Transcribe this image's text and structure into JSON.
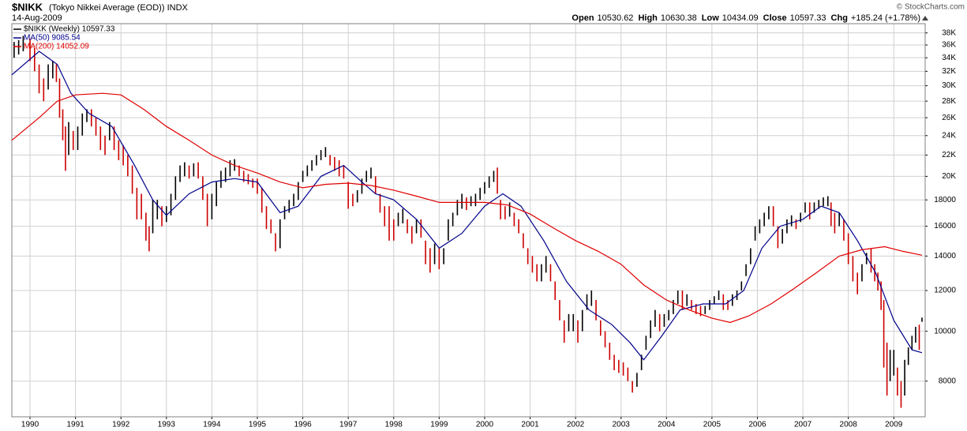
{
  "chart_data": {
    "type": "stock",
    "title": "$NIKK",
    "subtitle": "(Tokyo Nikkei Average (EOD)) INDX",
    "date": "14-Aug-2009",
    "source": "© StockCharts.com",
    "quote": [
      {
        "label": "Open",
        "value": 10530.62
      },
      {
        "label": "High",
        "value": 10630.38
      },
      {
        "label": "Low",
        "value": 10434.09
      },
      {
        "label": "Close",
        "value": 10597.33
      },
      {
        "label": "Chg",
        "value": "+185.24 (+1.78%)"
      }
    ],
    "log_scale": true,
    "grid": true,
    "legend": "top-left",
    "xlim": [
      1989.6,
      2009.69
    ],
    "xticks": [
      {
        "value": 1990,
        "label": "1990"
      },
      {
        "value": 1991,
        "label": "1991"
      },
      {
        "value": 1992,
        "label": "1992"
      },
      {
        "value": 1993,
        "label": "1993"
      },
      {
        "value": 1994,
        "label": "1994"
      },
      {
        "value": 1995,
        "label": "1995"
      },
      {
        "value": 1996,
        "label": "1996"
      },
      {
        "value": 1997,
        "label": "1997"
      },
      {
        "value": 1998,
        "label": "1998"
      },
      {
        "value": 1999,
        "label": "1999"
      },
      {
        "value": 2000,
        "label": "2000"
      },
      {
        "value": 2001,
        "label": "2001"
      },
      {
        "value": 2002,
        "label": "2002"
      },
      {
        "value": 2003,
        "label": "2003"
      },
      {
        "value": 2004,
        "label": "2004"
      },
      {
        "value": 2005,
        "label": "2005"
      },
      {
        "value": 2006,
        "label": "2006"
      },
      {
        "value": 2007,
        "label": "2007"
      },
      {
        "value": 2008,
        "label": "2008"
      },
      {
        "value": 2009,
        "label": "2009"
      }
    ],
    "ylim": [
      6820,
      39600
    ],
    "yticks": [
      8000,
      10000,
      12000,
      14000,
      16000,
      18000,
      {
        "value": 20000,
        "label": "20K"
      },
      {
        "value": 22000,
        "label": "22K"
      },
      {
        "value": 24000,
        "label": "24K"
      },
      {
        "value": 26000,
        "label": "26K"
      },
      {
        "value": 28000,
        "label": "28K"
      },
      {
        "value": 30000,
        "label": "30K"
      },
      {
        "value": 32000,
        "label": "32K"
      },
      {
        "value": 34000,
        "label": "34K"
      },
      {
        "value": 36000,
        "label": "36K"
      },
      {
        "value": 38000,
        "label": "38K"
      }
    ],
    "series": [
      {
        "name": "$NIKK (Weekly) 10597.33",
        "type": "bar",
        "color": "#000000",
        "down_color": "#cc0000",
        "x": [
          1989.65,
          1989.75,
          1989.85,
          1990.0,
          1990.1,
          1990.2,
          1990.3,
          1990.4,
          1990.5,
          1990.58,
          1990.65,
          1990.72,
          1990.78,
          1990.85,
          1990.95,
          1991.05,
          1991.15,
          1991.25,
          1991.35,
          1991.45,
          1991.55,
          1991.65,
          1991.75,
          1991.85,
          1991.95,
          1992.05,
          1992.15,
          1992.25,
          1992.35,
          1992.45,
          1992.55,
          1992.62,
          1992.7,
          1992.8,
          1992.9,
          1993.0,
          1993.1,
          1993.2,
          1993.3,
          1993.4,
          1993.5,
          1993.6,
          1993.7,
          1993.8,
          1993.9,
          1994.0,
          1994.1,
          1994.2,
          1994.3,
          1994.4,
          1994.5,
          1994.6,
          1994.7,
          1994.8,
          1994.9,
          1995.0,
          1995.1,
          1995.2,
          1995.3,
          1995.4,
          1995.5,
          1995.6,
          1995.7,
          1995.8,
          1995.9,
          1996.0,
          1996.1,
          1996.2,
          1996.3,
          1996.4,
          1996.5,
          1996.6,
          1996.7,
          1996.8,
          1996.9,
          1997.0,
          1997.1,
          1997.2,
          1997.3,
          1997.4,
          1997.5,
          1997.6,
          1997.7,
          1997.8,
          1997.9,
          1998.0,
          1998.1,
          1998.2,
          1998.3,
          1998.4,
          1998.5,
          1998.6,
          1998.7,
          1998.8,
          1998.9,
          1999.0,
          1999.1,
          1999.2,
          1999.3,
          1999.4,
          1999.5,
          1999.6,
          1999.7,
          1999.8,
          1999.9,
          2000.0,
          2000.1,
          2000.2,
          2000.28,
          2000.35,
          2000.45,
          2000.55,
          2000.65,
          2000.75,
          2000.85,
          2000.95,
          2001.05,
          2001.15,
          2001.25,
          2001.35,
          2001.45,
          2001.55,
          2001.65,
          2001.75,
          2001.85,
          2001.95,
          2002.05,
          2002.15,
          2002.25,
          2002.35,
          2002.45,
          2002.55,
          2002.65,
          2002.75,
          2002.85,
          2002.95,
          2003.05,
          2003.15,
          2003.25,
          2003.35,
          2003.45,
          2003.55,
          2003.65,
          2003.75,
          2003.85,
          2003.95,
          2004.05,
          2004.15,
          2004.25,
          2004.35,
          2004.45,
          2004.55,
          2004.65,
          2004.75,
          2004.85,
          2004.95,
          2005.05,
          2005.15,
          2005.25,
          2005.35,
          2005.45,
          2005.55,
          2005.65,
          2005.75,
          2005.85,
          2005.95,
          2006.05,
          2006.15,
          2006.25,
          2006.35,
          2006.45,
          2006.55,
          2006.65,
          2006.75,
          2006.85,
          2006.95,
          2007.05,
          2007.15,
          2007.25,
          2007.35,
          2007.45,
          2007.55,
          2007.62,
          2007.7,
          2007.8,
          2007.9,
          2008.0,
          2008.1,
          2008.2,
          2008.3,
          2008.4,
          2008.5,
          2008.58,
          2008.65,
          2008.72,
          2008.78,
          2008.85,
          2008.92,
          2009.0,
          2009.08,
          2009.16,
          2009.24,
          2009.32,
          2009.4,
          2009.48,
          2009.56,
          2009.62
        ],
        "high": [
          36500,
          36800,
          37500,
          37000,
          35500,
          33000,
          31000,
          33000,
          33500,
          33000,
          31000,
          27000,
          25000,
          25500,
          24500,
          25000,
          26500,
          27000,
          27000,
          26000,
          25000,
          24000,
          25500,
          25000,
          23500,
          23000,
          22000,
          21000,
          19000,
          18500,
          17000,
          16000,
          18000,
          18000,
          17500,
          17500,
          18500,
          20000,
          21000,
          21300,
          21000,
          21200,
          21300,
          20000,
          18500,
          18500,
          19500,
          20500,
          20800,
          21500,
          21600,
          21000,
          20500,
          20200,
          19800,
          19800,
          19000,
          17500,
          16500,
          15500,
          16500,
          17500,
          18000,
          18500,
          19500,
          20500,
          21000,
          21500,
          22000,
          22500,
          22800,
          22000,
          21800,
          21500,
          21000,
          19500,
          18500,
          18800,
          19800,
          20500,
          20800,
          20000,
          18500,
          17500,
          17500,
          16500,
          17000,
          17300,
          16500,
          16000,
          16500,
          16500,
          15000,
          14500,
          14800,
          14500,
          14500,
          16500,
          17000,
          18000,
          18500,
          18200,
          18300,
          18500,
          19000,
          19500,
          20000,
          20500,
          20800,
          18000,
          17500,
          17800,
          17000,
          16500,
          15500,
          14500,
          14000,
          13500,
          13500,
          14000,
          13500,
          12500,
          11500,
          10500,
          10800,
          10800,
          10500,
          11000,
          11800,
          12000,
          11500,
          10500,
          10000,
          9500,
          9000,
          8800,
          8700,
          8500,
          8000,
          8300,
          9000,
          9800,
          10500,
          11000,
          10800,
          10800,
          11000,
          11500,
          12000,
          12000,
          11800,
          11500,
          11300,
          11200,
          11200,
          11500,
          11700,
          12000,
          11800,
          11500,
          11800,
          12000,
          12500,
          13500,
          14500,
          16000,
          16500,
          17000,
          17500,
          17500,
          16000,
          15800,
          16500,
          16800,
          16500,
          17000,
          17800,
          17800,
          17800,
          18000,
          18200,
          18300,
          17800,
          17000,
          17000,
          16500,
          15500,
          14000,
          13000,
          13500,
          14200,
          14500,
          13500,
          13000,
          12500,
          11500,
          9500,
          9200,
          9200,
          8500,
          8000,
          8800,
          9300,
          9800,
          10200,
          10300,
          10630.38
        ],
        "low": [
          34000,
          34500,
          35000,
          33500,
          32000,
          29000,
          28000,
          29500,
          31000,
          30500,
          26000,
          23500,
          20500,
          22000,
          22500,
          22500,
          24000,
          25500,
          25000,
          24000,
          22500,
          22000,
          23500,
          22500,
          21500,
          21000,
          20000,
          18500,
          16500,
          16500,
          15000,
          14300,
          15500,
          16500,
          16000,
          16300,
          16800,
          18000,
          19500,
          20000,
          19800,
          20000,
          19800,
          18000,
          16000,
          16500,
          17500,
          19000,
          19500,
          20000,
          20500,
          20000,
          19500,
          19300,
          19000,
          18500,
          17000,
          15800,
          15500,
          14300,
          14500,
          16500,
          17000,
          17500,
          18000,
          19500,
          20000,
          20500,
          21000,
          21500,
          21800,
          21000,
          20500,
          20000,
          19800,
          17300,
          17500,
          17800,
          18500,
          19500,
          19800,
          18500,
          17000,
          16000,
          15000,
          15000,
          16000,
          16200,
          15500,
          14800,
          15500,
          15200,
          13500,
          13000,
          13500,
          13200,
          13500,
          15000,
          16000,
          16800,
          17300,
          17200,
          17500,
          17500,
          18000,
          18500,
          19000,
          19500,
          18500,
          16500,
          16500,
          16700,
          16000,
          15500,
          14500,
          13500,
          13000,
          12500,
          12500,
          13000,
          12500,
          11500,
          10500,
          9500,
          10000,
          10000,
          9500,
          10000,
          11000,
          11200,
          10500,
          9800,
          9300,
          8800,
          8400,
          8300,
          8200,
          8000,
          7600,
          7800,
          8400,
          9200,
          9700,
          10200,
          10000,
          10200,
          10500,
          10800,
          11300,
          11000,
          11200,
          11000,
          10800,
          10700,
          10800,
          11000,
          11300,
          11500,
          11000,
          11000,
          11200,
          11500,
          12000,
          12800,
          13500,
          15000,
          15500,
          16000,
          16500,
          16000,
          14500,
          14800,
          15500,
          16000,
          15800,
          16300,
          17000,
          16500,
          17000,
          17300,
          17500,
          17500,
          16000,
          15500,
          16000,
          15000,
          13500,
          12500,
          11800,
          12500,
          13500,
          13000,
          12500,
          12000,
          11000,
          8500,
          7500,
          8000,
          8200,
          7500,
          7100,
          7500,
          8600,
          9200,
          9500,
          9200,
          10434.09
        ]
      },
      {
        "name": "MA(50) 9085.54",
        "type": "line",
        "color": "#00008b",
        "x": [
          1989.6,
          1990.2,
          1990.6,
          1990.9,
          1991.3,
          1991.8,
          1992.3,
          1992.7,
          1993.0,
          1993.5,
          1994.0,
          1994.5,
          1995.0,
          1995.5,
          1995.9,
          1996.4,
          1996.9,
          1997.3,
          1997.6,
          1998.0,
          1998.5,
          1999.0,
          1999.5,
          2000.0,
          2000.4,
          2000.8,
          2001.3,
          2001.8,
          2002.3,
          2002.8,
          2003.2,
          2003.5,
          2003.9,
          2004.3,
          2004.8,
          2005.3,
          2005.7,
          2006.1,
          2006.5,
          2007.0,
          2007.4,
          2007.8,
          2008.2,
          2008.6,
          2009.0,
          2009.4,
          2009.62
        ],
        "values": [
          31500,
          35000,
          33000,
          29000,
          26500,
          25000,
          21000,
          18000,
          16800,
          18500,
          19500,
          19800,
          19500,
          17000,
          17500,
          20000,
          21000,
          19500,
          18500,
          18000,
          16500,
          14500,
          15500,
          17500,
          18500,
          17500,
          15000,
          12500,
          11000,
          10300,
          9500,
          8800,
          9800,
          11000,
          11300,
          11300,
          12000,
          14500,
          16000,
          16500,
          17500,
          17000,
          15000,
          13000,
          10500,
          9200,
          9085.54
        ]
      },
      {
        "name": "MA(200) 14052.09",
        "type": "line",
        "color": "#e00000",
        "x": [
          1989.6,
          1990.2,
          1990.6,
          1991.0,
          1991.6,
          1992.0,
          1992.5,
          1993.0,
          1993.5,
          1994.0,
          1994.5,
          1995.0,
          1995.5,
          1996.0,
          1996.5,
          1997.0,
          1997.5,
          1998.0,
          1998.5,
          1999.0,
          1999.5,
          2000.0,
          2000.5,
          2001.0,
          2001.5,
          2002.0,
          2002.5,
          2003.0,
          2003.5,
          2004.0,
          2004.5,
          2005.0,
          2005.4,
          2005.8,
          2006.3,
          2006.8,
          2007.3,
          2007.8,
          2008.3,
          2008.8,
          2009.2,
          2009.62
        ],
        "values": [
          23500,
          26000,
          28000,
          28800,
          29000,
          28800,
          27000,
          25000,
          23500,
          22000,
          21000,
          20300,
          19500,
          19000,
          19300,
          19400,
          19200,
          18800,
          18300,
          17800,
          17800,
          17800,
          17600,
          16900,
          15900,
          15000,
          14300,
          13500,
          12300,
          11500,
          11000,
          10600,
          10400,
          10700,
          11300,
          12100,
          13000,
          14000,
          14400,
          14600,
          14300,
          14052.09
        ]
      }
    ]
  }
}
